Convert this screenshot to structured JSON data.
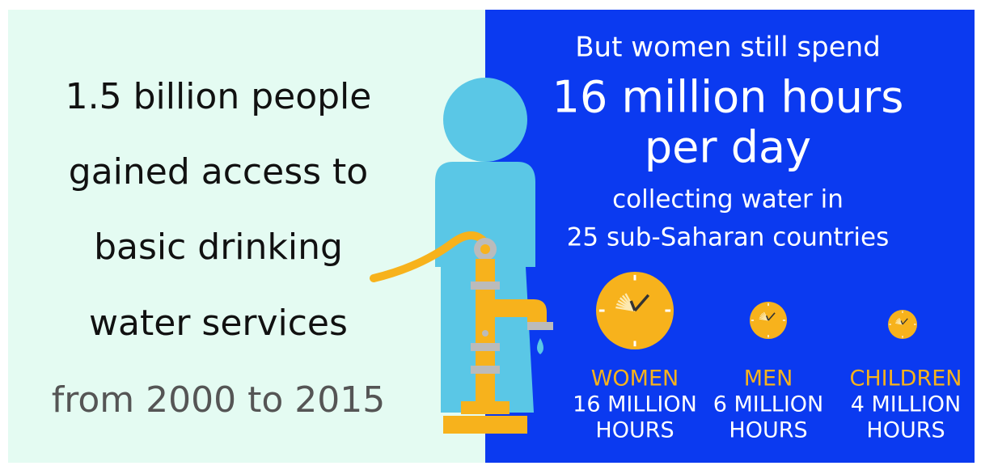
{
  "left": {
    "lines": [
      "1.5 billion people",
      "gained access to",
      "basic drinking",
      "water services"
    ],
    "period": "from 2000 to 2015"
  },
  "right": {
    "intro": "But women still spend",
    "headline": [
      "16 million hours",
      "per day"
    ],
    "detail": [
      "collecting water in",
      "25 sub-Saharan countries"
    ],
    "groups": [
      {
        "label": "WOMEN",
        "lines": [
          "16 MILLION",
          "HOURS"
        ]
      },
      {
        "label": "MEN",
        "lines": [
          "6 MILLION",
          "HOURS"
        ]
      },
      {
        "label": "CHILDREN",
        "lines": [
          "4 MILLION",
          "HOURS"
        ]
      }
    ]
  }
}
